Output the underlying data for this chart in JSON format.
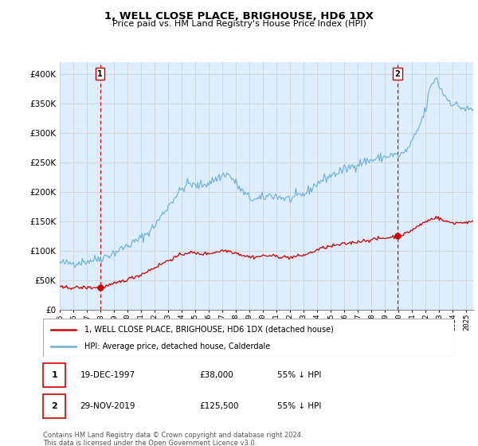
{
  "title": "1, WELL CLOSE PLACE, BRIGHOUSE, HD6 1DX",
  "subtitle": "Price paid vs. HM Land Registry's House Price Index (HPI)",
  "ylim": [
    0,
    420000
  ],
  "yticks": [
    0,
    50000,
    100000,
    150000,
    200000,
    250000,
    300000,
    350000,
    400000
  ],
  "xlim_start": 1995.0,
  "xlim_end": 2025.5,
  "xticks": [
    1995,
    1996,
    1997,
    1998,
    1999,
    2000,
    2001,
    2002,
    2003,
    2004,
    2005,
    2006,
    2007,
    2008,
    2009,
    2010,
    2011,
    2012,
    2013,
    2014,
    2015,
    2016,
    2017,
    2018,
    2019,
    2020,
    2021,
    2022,
    2023,
    2024,
    2025
  ],
  "sale1_x": 1997.97,
  "sale1_y": 38000,
  "sale1_date": "19-DEC-1997",
  "sale1_price": "£38,000",
  "sale1_hpi": "55% ↓ HPI",
  "sale2_x": 2019.91,
  "sale2_y": 125500,
  "sale2_date": "29-NOV-2019",
  "sale2_price": "£125,500",
  "sale2_hpi": "55% ↓ HPI",
  "hpi_color": "#6baed6",
  "sale_color": "#cc0000",
  "bg_fill_color": "#ddeeff",
  "legend1_label": "1, WELL CLOSE PLACE, BRIGHOUSE, HD6 1DX (detached house)",
  "legend2_label": "HPI: Average price, detached house, Calderdale",
  "footer": "Contains HM Land Registry data © Crown copyright and database right 2024.\nThis data is licensed under the Open Government Licence v3.0."
}
